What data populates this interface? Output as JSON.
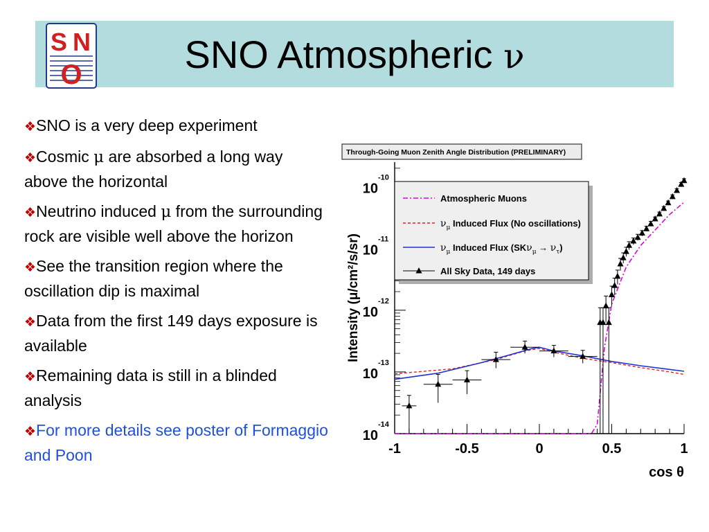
{
  "slide": {
    "title_text": "SNO Atmospheric",
    "title_symbol": "ν",
    "logo_letters": [
      "S",
      "N",
      "O"
    ],
    "bullet_mark": "❖"
  },
  "bullets": [
    {
      "segments": [
        "SNO is a very deep experiment"
      ]
    },
    {
      "segments": [
        "Cosmic ",
        "μ",
        " are absorbed a long way above the horizontal"
      ]
    },
    {
      "segments": [
        "Neutrino induced ",
        "μ",
        " from the surrounding rock are visible well above the horizon"
      ]
    },
    {
      "segments": [
        "See the transition region where the oscillation dip is maximal"
      ]
    },
    {
      "segments": [
        "Data from the first 149 days exposure is available"
      ]
    },
    {
      "segments": [
        "Remaining data is still in a blinded analysis"
      ]
    },
    {
      "segments": [
        "For more details see poster of Formaggio and Poon"
      ],
      "color": "#1f4fe0"
    }
  ],
  "colors": {
    "title_bar": "#b3dcdf",
    "bullet_mark": "#c00000",
    "link_text": "#1f4fe0",
    "atm_muons": "#e000e0",
    "no_osc": "#e02020",
    "sk_osc": "#2030d0",
    "data": "#000000"
  },
  "chart_data": {
    "type": "line",
    "title": "Through-Going Muon Zenith Angle Distribution (PRELIMINARY)",
    "xlabel": "cos θ",
    "ylabel": "Intensity (μ/cm²/s/sr)",
    "x_ticks": [
      -1,
      -0.5,
      0,
      0.5,
      1
    ],
    "x_tick_labels": [
      "-1",
      "-0.5",
      "0",
      "0.5",
      "1"
    ],
    "y_ticks": [
      -14,
      -13,
      -12,
      -11,
      -10
    ],
    "y_tick_base": "10",
    "y_tick_exps": [
      "-14",
      "-13",
      "-12",
      "-11",
      "-10"
    ],
    "xlim": [
      -1,
      1
    ],
    "ylim_log10": [
      -14,
      -9.6
    ],
    "y_scale": "log",
    "legend_position": "top-left",
    "series": [
      {
        "name": "Atmospheric Muons",
        "style": "dash-dot",
        "x": [
          -1,
          0.36,
          0.4,
          0.45,
          0.5,
          0.6,
          0.7,
          0.8,
          0.9,
          1.0
        ],
        "log10_y": [
          -14,
          -14,
          -13.85,
          -12.6,
          -11.9,
          -11.3,
          -10.95,
          -10.7,
          -10.45,
          -10.25
        ]
      },
      {
        "name": "νμ Induced Flux (No oscillations)",
        "label_parts": [
          "ν",
          "μ",
          " Induced Flux (No oscillations)"
        ],
        "style": "dashed",
        "x": [
          -1,
          -0.6,
          -0.3,
          -0.1,
          0,
          0.1,
          0.3,
          0.5,
          0.7,
          0.9,
          1.0
        ],
        "log10_y": [
          -13.03,
          -12.95,
          -12.8,
          -12.66,
          -12.62,
          -12.68,
          -12.78,
          -12.85,
          -12.93,
          -13.0,
          -13.04
        ]
      },
      {
        "name": "νμ Induced Flux (SKνμ → ντ)",
        "label_parts": [
          "ν",
          "μ",
          " Induced Flux (SK",
          "ν",
          "μ",
          " → ",
          "ν",
          "τ",
          ")"
        ],
        "style": "solid",
        "x": [
          -1,
          -0.7,
          -0.4,
          -0.2,
          -0.05,
          0,
          0.1,
          0.3,
          0.5,
          0.7,
          0.9,
          1.0
        ],
        "log10_y": [
          -13.12,
          -13.02,
          -12.85,
          -12.72,
          -12.62,
          -12.6,
          -12.66,
          -12.74,
          -12.83,
          -12.9,
          -12.96,
          -12.99
        ]
      },
      {
        "name": "All Sky Data, 149 days",
        "style": "markers",
        "points": [
          {
            "x": -0.9,
            "y": -13.55,
            "xerr": 0.05,
            "ylo": -14.0,
            "yhi": -13.38
          },
          {
            "x": -0.7,
            "y": -13.2,
            "xerr": 0.1,
            "ylo": -13.5,
            "yhi": -13.04
          },
          {
            "x": -0.5,
            "y": -13.13,
            "xerr": 0.1,
            "ylo": -13.36,
            "yhi": -12.98
          },
          {
            "x": -0.3,
            "y": -12.8,
            "xerr": 0.1,
            "ylo": -12.94,
            "yhi": -12.68
          },
          {
            "x": -0.1,
            "y": -12.6,
            "xerr": 0.1,
            "ylo": -12.7,
            "yhi": -12.5
          },
          {
            "x": 0.1,
            "y": -12.66,
            "xerr": 0.1,
            "ylo": -12.76,
            "yhi": -12.57
          },
          {
            "x": 0.3,
            "y": -12.75,
            "xerr": 0.1,
            "ylo": -12.86,
            "yhi": -12.65
          },
          {
            "x": 0.42,
            "y": -12.2,
            "xerr": 0.01,
            "ylo": -14.0,
            "yhi": -11.96
          },
          {
            "x": 0.44,
            "y": -12.2,
            "xerr": 0.01,
            "ylo": -14.0,
            "yhi": -11.96
          },
          {
            "x": 0.46,
            "y": -11.93,
            "xerr": 0.01,
            "ylo": -12.2,
            "yhi": -11.77
          },
          {
            "x": 0.48,
            "y": -12.2,
            "xerr": 0.01,
            "ylo": -14.0,
            "yhi": -11.96
          },
          {
            "x": 0.5,
            "y": -11.75,
            "xerr": 0.01,
            "ylo": -11.93,
            "yhi": -11.61
          },
          {
            "x": 0.52,
            "y": -11.6,
            "xerr": 0.01,
            "ylo": -11.76,
            "yhi": -11.48
          },
          {
            "x": 0.54,
            "y": -11.45,
            "xerr": 0.01,
            "ylo": -11.58,
            "yhi": -11.35
          },
          {
            "x": 0.56,
            "y": -11.25,
            "xerr": 0.01,
            "ylo": -11.36,
            "yhi": -11.16
          },
          {
            "x": 0.58,
            "y": -11.15,
            "xerr": 0.01,
            "ylo": -11.24,
            "yhi": -11.07
          },
          {
            "x": 0.6,
            "y": -11.05,
            "xerr": 0.01,
            "ylo": -11.13,
            "yhi": -10.98
          },
          {
            "x": 0.62,
            "y": -10.95,
            "xerr": 0.01,
            "ylo": -11.02,
            "yhi": -10.89
          },
          {
            "x": 0.65,
            "y": -10.88,
            "xerr": 0.01,
            "ylo": -10.94,
            "yhi": -10.83
          },
          {
            "x": 0.68,
            "y": -10.82,
            "xerr": 0.01,
            "ylo": -10.87,
            "yhi": -10.77
          },
          {
            "x": 0.71,
            "y": -10.75,
            "xerr": 0.01,
            "ylo": -10.8,
            "yhi": -10.71
          },
          {
            "x": 0.74,
            "y": -10.68,
            "xerr": 0.01,
            "ylo": -10.72,
            "yhi": -10.64
          },
          {
            "x": 0.77,
            "y": -10.6,
            "xerr": 0.01,
            "ylo": -10.64,
            "yhi": -10.56
          },
          {
            "x": 0.8,
            "y": -10.52,
            "xerr": 0.01,
            "ylo": -10.56,
            "yhi": -10.49
          },
          {
            "x": 0.83,
            "y": -10.44,
            "xerr": 0.01,
            "ylo": -10.48,
            "yhi": -10.41
          },
          {
            "x": 0.86,
            "y": -10.35,
            "xerr": 0.01,
            "ylo": -10.39,
            "yhi": -10.32
          },
          {
            "x": 0.89,
            "y": -10.26,
            "xerr": 0.01,
            "ylo": -10.3,
            "yhi": -10.23
          },
          {
            "x": 0.92,
            "y": -10.16,
            "xerr": 0.01,
            "ylo": -10.2,
            "yhi": -10.13
          },
          {
            "x": 0.95,
            "y": -10.06,
            "xerr": 0.01,
            "ylo": -10.1,
            "yhi": -10.03
          },
          {
            "x": 0.98,
            "y": -9.96,
            "xerr": 0.01,
            "ylo": -10.0,
            "yhi": -9.93
          },
          {
            "x": 1.0,
            "y": -9.9,
            "xerr": 0.01,
            "ylo": -9.94,
            "yhi": -9.87
          }
        ]
      }
    ]
  }
}
